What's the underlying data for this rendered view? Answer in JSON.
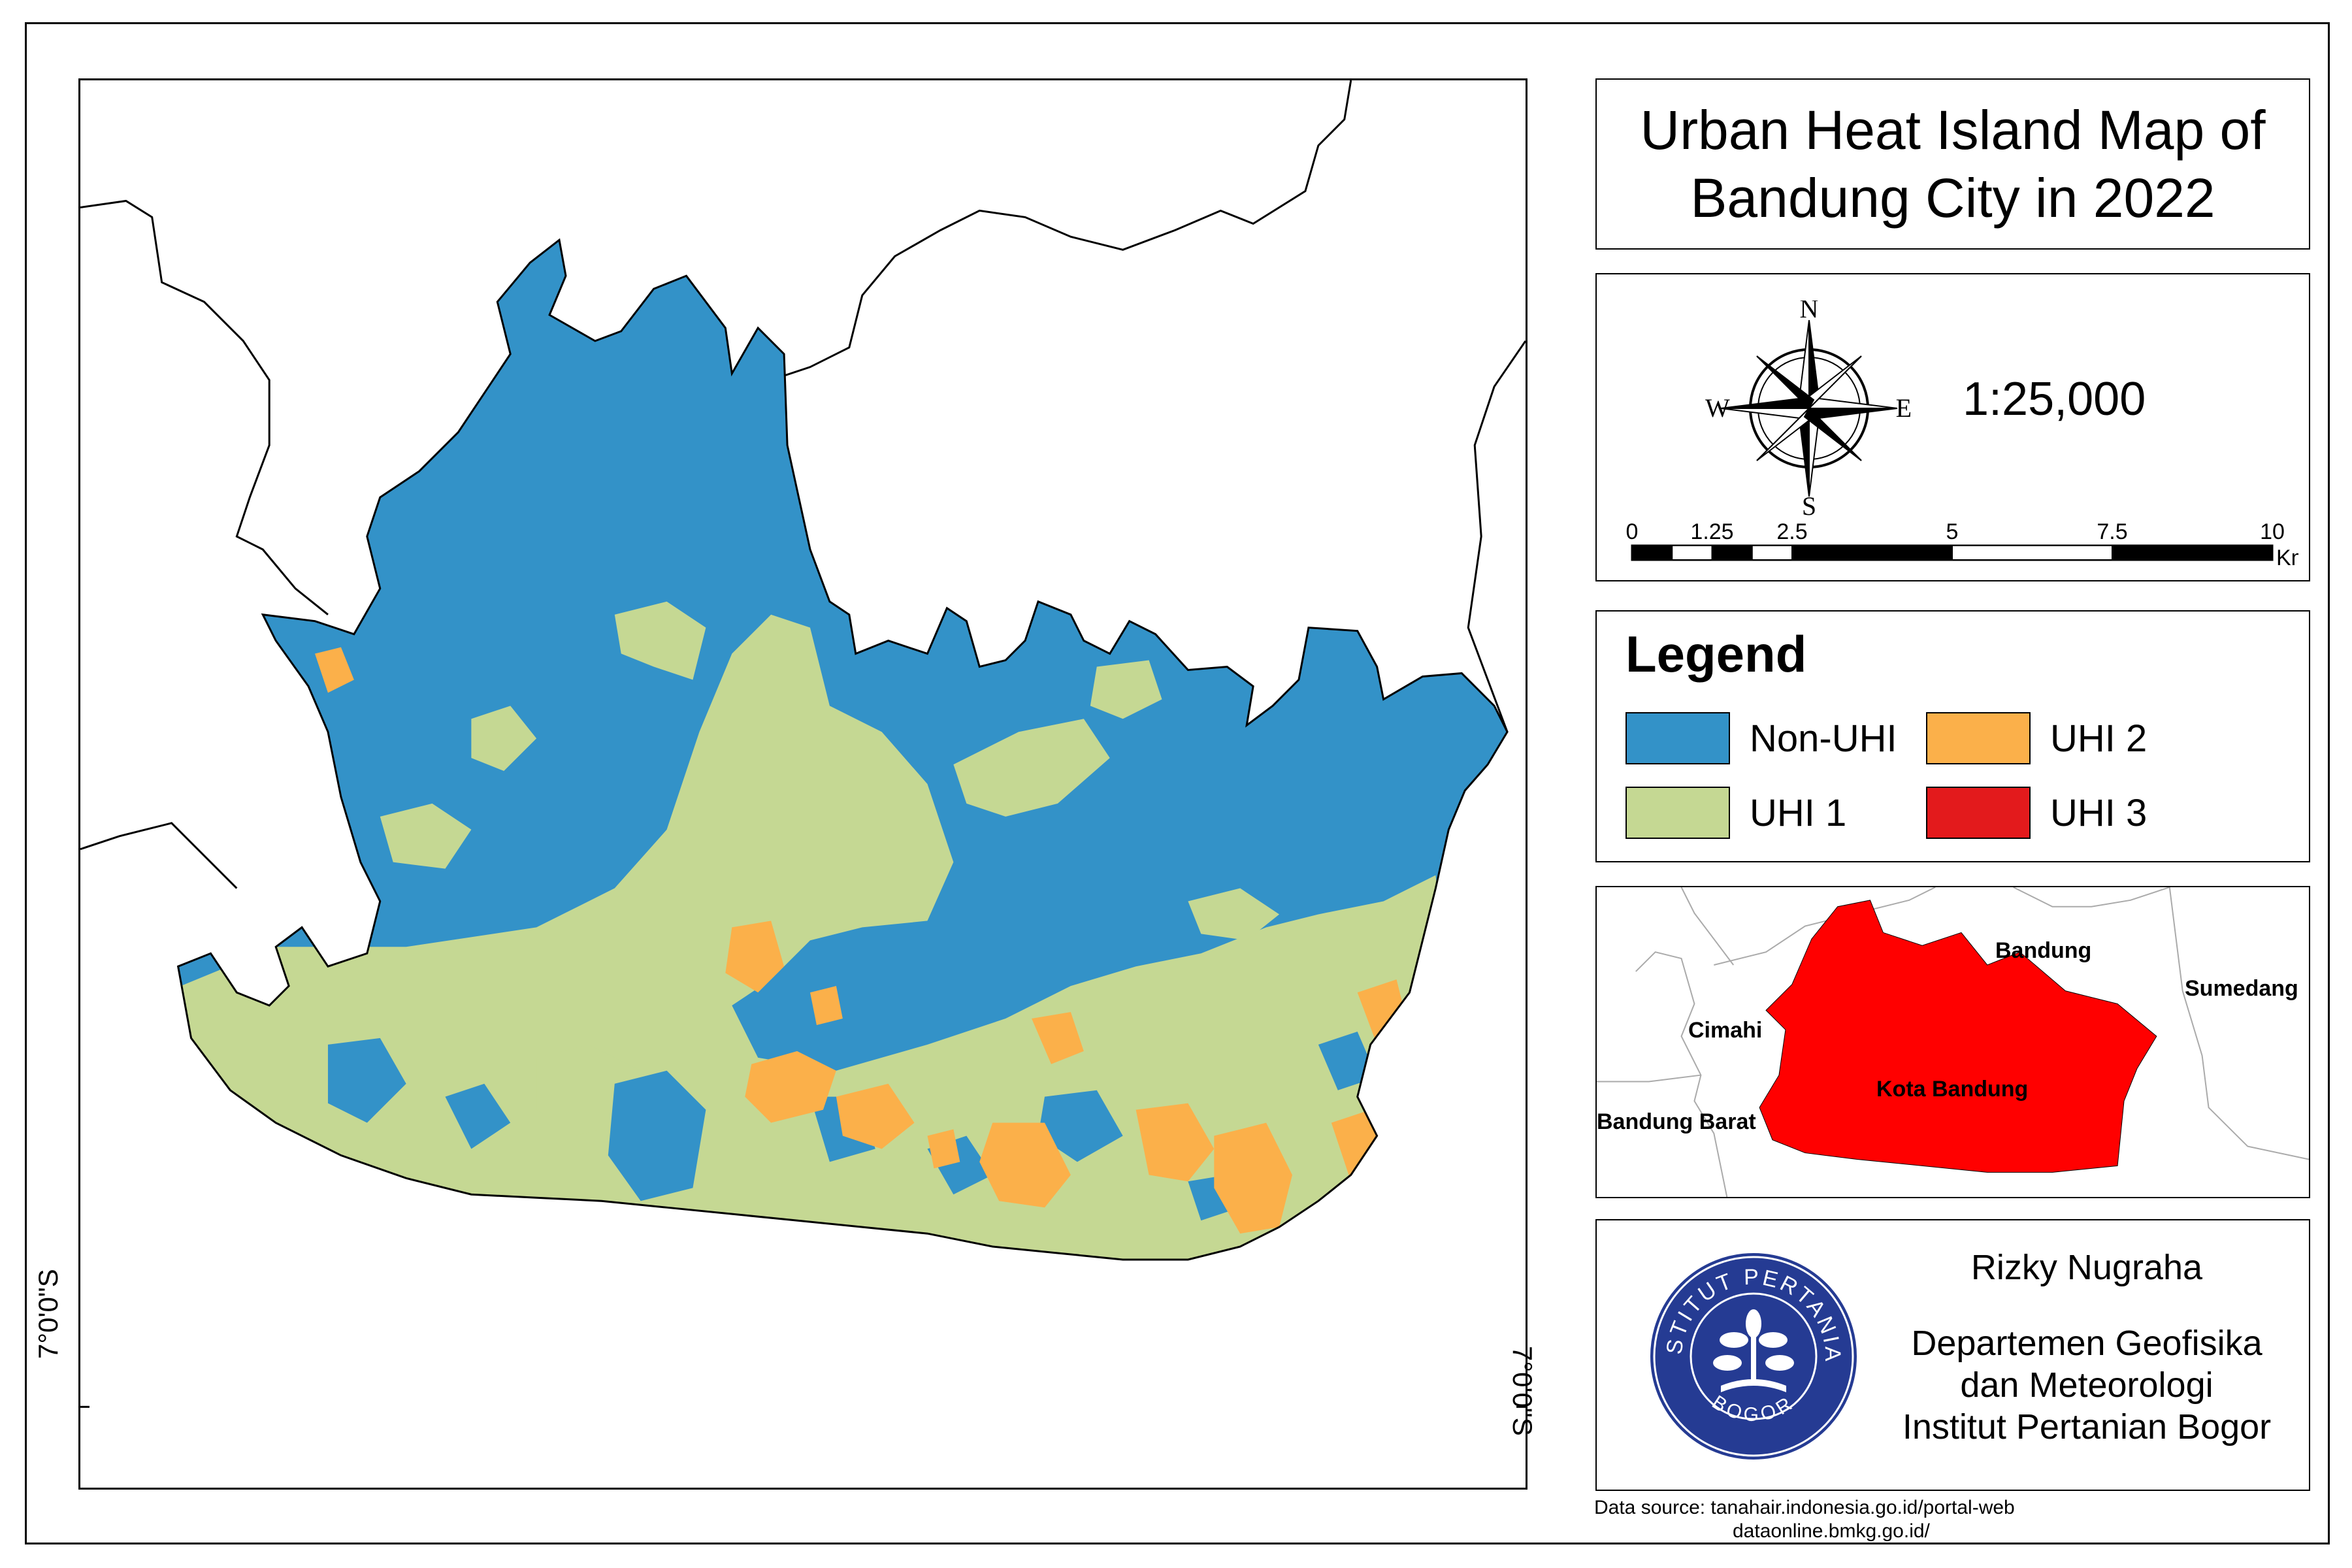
{
  "title": {
    "line1": "Urban Heat Island Map of",
    "line2": "Bandung City in 2022"
  },
  "coordinate_label": "7°0'0\"S",
  "north_arrow": {
    "icon": "compass-rose-icon",
    "n": "N",
    "s": "S",
    "e": "E",
    "w": "W"
  },
  "scale": {
    "ratio": "1:25,000",
    "ticks": [
      "0",
      "1.25",
      "2.5",
      "5",
      "7.5",
      "10"
    ],
    "tick_values": [
      0,
      1.25,
      2.5,
      5,
      7.5,
      10
    ],
    "unit": "Km"
  },
  "legend": {
    "title": "Legend",
    "items": [
      {
        "label": "Non-UHI",
        "color": "#3392c8"
      },
      {
        "label": "UHI 2",
        "color": "#fbb04a"
      },
      {
        "label": "UHI 1",
        "color": "#c5d893"
      },
      {
        "label": "UHI 3",
        "color": "#e31a1c"
      }
    ]
  },
  "inset": {
    "highlight_color": "#ff0000",
    "labels": {
      "bandung": "Bandung",
      "sumedang": "Sumedang",
      "cimahi": "Cimahi",
      "kota_bandung": "Kota Bandung",
      "bandung_barat": "Bandung Barat"
    }
  },
  "credit": {
    "logo_icon": "ipb-logo-icon",
    "logo_text_top": "INSTITUT PERTANIAN",
    "logo_text_bottom": "BOGOR",
    "author": "Rizky Nugraha",
    "dept_line1": "Departemen Geofisika",
    "dept_line2": "dan Meteorologi",
    "institution": "Institut Pertanian Bogor"
  },
  "data_source": {
    "line1": "Data source: tanahair.indonesia.go.id/portal-web",
    "line2": "dataonline.bmkg.go.id/"
  }
}
